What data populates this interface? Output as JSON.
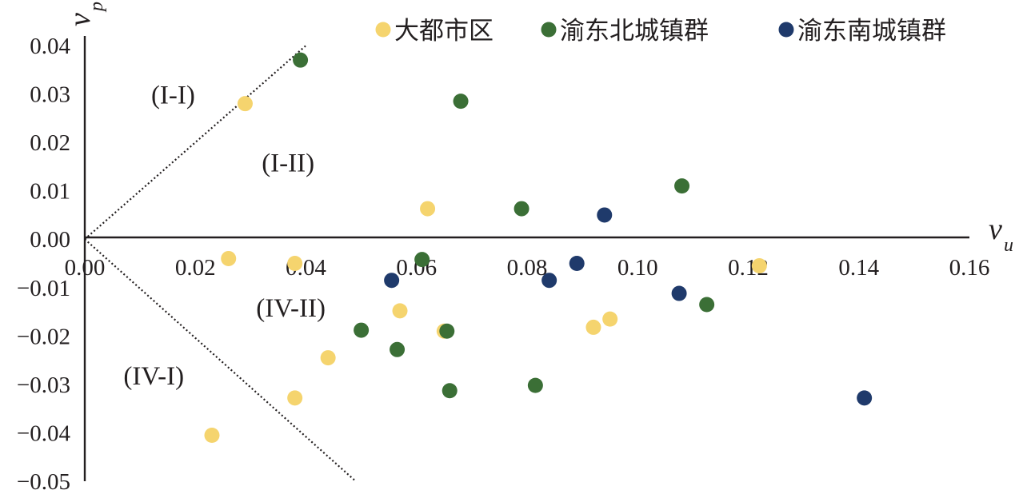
{
  "chart_data": {
    "type": "scatter",
    "xlabel": "v",
    "xlabel_sub": "u",
    "ylabel": "v",
    "ylabel_sub": "p",
    "xlim": [
      0,
      0.16
    ],
    "ylim": [
      -0.05,
      0.04
    ],
    "x_ticks": [
      "0.00",
      "0.02",
      "0.04",
      "0.06",
      "0.08",
      "0.10",
      "0.12",
      "0.14",
      "0.16"
    ],
    "y_ticks": [
      "0.04",
      "0.03",
      "0.02",
      "0.01",
      "0.00",
      "−0.01",
      "−0.02",
      "−0.03",
      "−0.04",
      "−0.05"
    ],
    "grid": false,
    "legend_position": "top-right",
    "region_labels": [
      {
        "text": "(I-I)",
        "x": 0.012,
        "y": 0.028
      },
      {
        "text": "(I-II)",
        "x": 0.032,
        "y": 0.014
      },
      {
        "text": "(IV-II)",
        "x": 0.031,
        "y": -0.016
      },
      {
        "text": "(IV-I)",
        "x": 0.007,
        "y": -0.03
      }
    ],
    "guide_lines": [
      {
        "from": [
          0,
          0
        ],
        "to": [
          0.04,
          0.04
        ]
      },
      {
        "from": [
          0,
          0
        ],
        "to": [
          0.049,
          -0.05
        ]
      }
    ],
    "series": [
      {
        "name": "大都市区",
        "color": "#f5d46e",
        "points": [
          {
            "x": 0.029,
            "y": 0.028
          },
          {
            "x": 0.062,
            "y": 0.0063
          },
          {
            "x": 0.026,
            "y": -0.004
          },
          {
            "x": 0.038,
            "y": -0.005
          },
          {
            "x": 0.057,
            "y": -0.0148
          },
          {
            "x": 0.065,
            "y": -0.019
          },
          {
            "x": 0.044,
            "y": -0.0245
          },
          {
            "x": 0.038,
            "y": -0.0328
          },
          {
            "x": 0.023,
            "y": -0.0405
          },
          {
            "x": 0.092,
            "y": -0.0182
          },
          {
            "x": 0.095,
            "y": -0.0165
          },
          {
            "x": 0.122,
            "y": -0.0055
          }
        ]
      },
      {
        "name": "渝东北城镇群",
        "color": "#3b6f36",
        "points": [
          {
            "x": 0.039,
            "y": 0.037
          },
          {
            "x": 0.068,
            "y": 0.0285
          },
          {
            "x": 0.079,
            "y": 0.0063
          },
          {
            "x": 0.108,
            "y": 0.011
          },
          {
            "x": 0.061,
            "y": -0.0042
          },
          {
            "x": 0.05,
            "y": -0.0188
          },
          {
            "x": 0.0565,
            "y": -0.0228
          },
          {
            "x": 0.0655,
            "y": -0.019
          },
          {
            "x": 0.066,
            "y": -0.0313
          },
          {
            "x": 0.0815,
            "y": -0.0302
          },
          {
            "x": 0.1125,
            "y": -0.0135
          }
        ]
      },
      {
        "name": "渝东南城镇群",
        "color": "#1f3a6b",
        "points": [
          {
            "x": 0.094,
            "y": 0.005
          },
          {
            "x": 0.0555,
            "y": -0.0085
          },
          {
            "x": 0.084,
            "y": -0.0085
          },
          {
            "x": 0.089,
            "y": -0.005
          },
          {
            "x": 0.1075,
            "y": -0.0112
          },
          {
            "x": 0.141,
            "y": -0.0328
          }
        ]
      }
    ]
  }
}
